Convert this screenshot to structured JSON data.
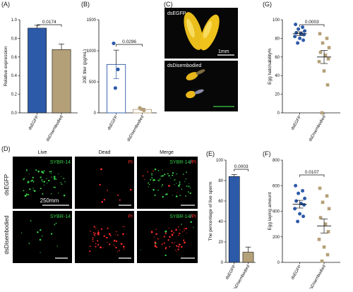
{
  "panels": {
    "A": {
      "letter": "(A)"
    },
    "B": {
      "letter": "(B)"
    },
    "C": {
      "letter": "(C)",
      "top_label": "dsEGFP",
      "bottom_label": "dsDisembodied",
      "scale": "1mm"
    },
    "D": {
      "letter": "(D)",
      "col_titles": [
        "Live",
        "Dead",
        "Merge"
      ],
      "row_labels": [
        "dsEGFP",
        "dsDisembodied"
      ],
      "stain_green": "SYBR-14",
      "stain_red": "PI",
      "stain_merge_green": "SYBR-14",
      "stain_merge_sep": "/",
      "stain_merge_red": "PI",
      "scale": "250mm"
    },
    "E": {
      "letter": "(E)"
    },
    "F": {
      "letter": "(F)"
    },
    "G": {
      "letter": "(G)"
    }
  },
  "colors": {
    "blue": "#2D5AA8",
    "tan": "#B4A078",
    "black": "#111111",
    "green": "#39d14a",
    "red": "#ff2a2a"
  },
  "chart_data": [
    {
      "id": "A",
      "type": "bar",
      "ylabel": "Relative expression",
      "ylim": [
        0,
        1.0
      ],
      "yticks": [
        0.0,
        0.2,
        0.4,
        0.6,
        0.8,
        1.0
      ],
      "categories": [
        "dsEGFP",
        "dsDisembodied"
      ],
      "values": [
        0.91,
        0.68
      ],
      "errors": [
        0.03,
        0.06
      ],
      "fills": [
        "blue",
        "tan"
      ],
      "pvalue": "0.0174"
    },
    {
      "id": "B",
      "type": "bar",
      "ylabel": "20E titer (pg/mL)",
      "ylim": [
        0,
        1500
      ],
      "yticks": [
        0,
        500,
        1000,
        1500
      ],
      "categories": [
        "dsEGFP",
        "dsDisembodied"
      ],
      "values": [
        780,
        55
      ],
      "errors": [
        230,
        15
      ],
      "fills": [
        "none",
        "none"
      ],
      "stroke": [
        "blue",
        "tan"
      ],
      "points": [
        [
          1120,
          700,
          400
        ],
        [
          80,
          40,
          60
        ]
      ],
      "point_colors": [
        "blue",
        "tan"
      ],
      "pvalue": "0.0296"
    },
    {
      "id": "E",
      "type": "bar",
      "ylabel": "The percentage of live sperm",
      "ylim": [
        0,
        100
      ],
      "yticks": [
        0,
        20,
        40,
        60,
        80,
        100
      ],
      "categories": [
        "dsEGFP",
        "dsDisembodied"
      ],
      "values": [
        84,
        10
      ],
      "errors": [
        2,
        5
      ],
      "fills": [
        "blue",
        "tan"
      ],
      "pvalue": "0.0003"
    },
    {
      "id": "F",
      "type": "scatter",
      "ylabel": "Egg laying amount",
      "ylim": [
        0,
        800
      ],
      "yticks": [
        0,
        200,
        400,
        600,
        800
      ],
      "categories": [
        "dsEGFP",
        "dsDisembodied"
      ],
      "points": [
        [
          600,
          560,
          540,
          500,
          480,
          460,
          450,
          420,
          380,
          360,
          320
        ],
        [
          580,
          520,
          470,
          420,
          350,
          300,
          240,
          180,
          120,
          60,
          10
        ]
      ],
      "means": [
        455,
        285
      ],
      "sems": [
        30,
        55
      ],
      "point_colors": [
        "blue",
        "tan"
      ],
      "pvalue": "0.0107"
    },
    {
      "id": "G",
      "type": "scatter",
      "ylabel": "Egg hatchability%",
      "ylim": [
        0,
        100
      ],
      "yticks": [
        0,
        20,
        40,
        60,
        80,
        100
      ],
      "categories": [
        "dsEGFP",
        "dsDisembodied"
      ],
      "points": [
        [
          95,
          92,
          90,
          88,
          86,
          85,
          84,
          82,
          80,
          78,
          75
        ],
        [
          85,
          80,
          75,
          70,
          65,
          62,
          58,
          55,
          45,
          30,
          0
        ]
      ],
      "means": [
        85,
        60
      ],
      "sems": [
        2,
        7
      ],
      "point_colors": [
        "blue",
        "tan"
      ],
      "pvalue": "0.0003"
    }
  ]
}
